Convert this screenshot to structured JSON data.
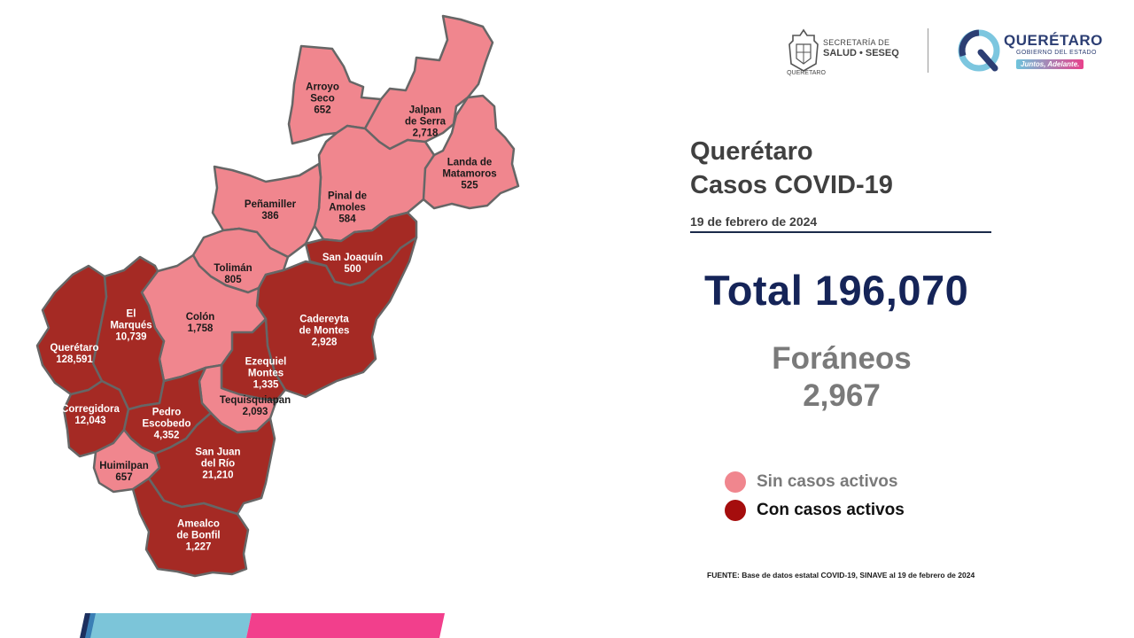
{
  "colors": {
    "sin_casos": "#f0868e",
    "con_casos": "#a52a24",
    "border": "#666666",
    "title_dark": "#152458",
    "gray_text": "#7a7a7a"
  },
  "header": {
    "secretaria_line1": "SECRETARÍA DE",
    "secretaria_line2": "SALUD • SESEQ",
    "secretaria_place": "QUERÉTARO",
    "state_title": "QUERÉTARO",
    "state_subtitle": "GOBIERNO DEL ESTADO",
    "state_tagline": "Juntos, Adelante."
  },
  "title": {
    "line1": "Querétaro",
    "line2": "Casos COVID-19"
  },
  "date": "19 de febrero de 2024",
  "total_text": "Total 196,070",
  "foraneos": {
    "label": "Foráneos",
    "value": "2,967"
  },
  "legend": [
    {
      "label": "Sin casos activos",
      "color": "#f0868e",
      "text_color": "#7a7a7a"
    },
    {
      "label": "Con casos activos",
      "color": "#a50d0d",
      "text_color": "#111111"
    }
  ],
  "source": "FUENTE: Base de datos estatal  COVID-19,  SINAVE  al 19 de febrero de 2024",
  "municipalities": [
    {
      "id": "arroyo-seco",
      "name_lines": [
        "Arroyo",
        "Seco"
      ],
      "cases": "652",
      "active": false
    },
    {
      "id": "jalpan",
      "name_lines": [
        "Jalpan",
        "de Serra"
      ],
      "cases": "2,718",
      "active": false
    },
    {
      "id": "landa",
      "name_lines": [
        "Landa de",
        "Matamoros"
      ],
      "cases": "525",
      "active": false
    },
    {
      "id": "pinal",
      "name_lines": [
        "Pinal de",
        "Amoles"
      ],
      "cases": "584",
      "active": false
    },
    {
      "id": "penamiller",
      "name_lines": [
        "Peñamiller"
      ],
      "cases": "386",
      "active": false
    },
    {
      "id": "san-joaquin",
      "name_lines": [
        "San Joaquín"
      ],
      "cases": "500",
      "active": true
    },
    {
      "id": "toliman",
      "name_lines": [
        "Tolimán"
      ],
      "cases": "805",
      "active": false
    },
    {
      "id": "colon",
      "name_lines": [
        "Colón"
      ],
      "cases": "1,758",
      "active": false
    },
    {
      "id": "cadereyta",
      "name_lines": [
        "Cadereyta",
        "de Montes"
      ],
      "cases": "2,928",
      "active": true
    },
    {
      "id": "el-marques",
      "name_lines": [
        "El",
        "Marqués"
      ],
      "cases": "10,739",
      "active": true
    },
    {
      "id": "queretaro",
      "name_lines": [
        "Querétaro"
      ],
      "cases": "128,591",
      "active": true
    },
    {
      "id": "ezequiel",
      "name_lines": [
        "Ezequiel",
        "Montes"
      ],
      "cases": "1,335",
      "active": true
    },
    {
      "id": "tequisquiapan",
      "name_lines": [
        "Tequisquiapan"
      ],
      "cases": "2,093",
      "active": false
    },
    {
      "id": "corregidora",
      "name_lines": [
        "Corregidora"
      ],
      "cases": "12,043",
      "active": true
    },
    {
      "id": "pedro-escobedo",
      "name_lines": [
        "Pedro",
        "Escobedo"
      ],
      "cases": "4,352",
      "active": true
    },
    {
      "id": "huimilpan",
      "name_lines": [
        "Huimilpan"
      ],
      "cases": "657",
      "active": false
    },
    {
      "id": "san-juan",
      "name_lines": [
        "San Juan",
        "del Río"
      ],
      "cases": "21,210",
      "active": true
    },
    {
      "id": "amealco",
      "name_lines": [
        "Amealco",
        "de Bonfil"
      ],
      "cases": "1,227",
      "active": true
    }
  ]
}
